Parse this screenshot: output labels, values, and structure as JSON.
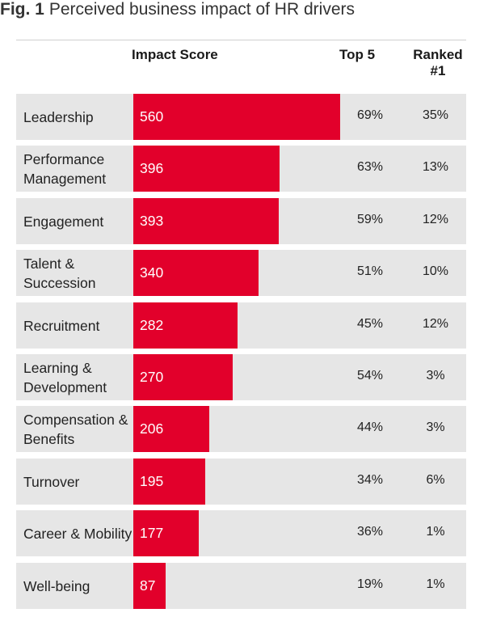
{
  "figure": {
    "number": "Fig. 1",
    "title": "Perceived business impact of HR drivers"
  },
  "headers": {
    "impact": "Impact Score",
    "top5": "Top 5",
    "ranked_line1": "Ranked",
    "ranked_line2": "#1"
  },
  "colors": {
    "bar": "#e2002b",
    "row_bg": "#e6e6e6"
  },
  "chart_data": {
    "type": "bar",
    "title": "Perceived business impact of HR drivers",
    "orientation": "horizontal",
    "xlabel": "Impact Score",
    "xlim": [
      0,
      560
    ],
    "categories": [
      "Leadership",
      "Performance Management",
      "Engagement",
      "Talent & Succession",
      "Recruitment",
      "Learning & Development",
      "Compensation & Benefits",
      "Turnover",
      "Career & Mobility",
      "Well-being"
    ],
    "rows": [
      {
        "label": "Leadership",
        "impact": 560,
        "top5": "69%",
        "ranked1": "35%"
      },
      {
        "label": "Performance Management",
        "impact": 396,
        "top5": "63%",
        "ranked1": "13%"
      },
      {
        "label": "Engagement",
        "impact": 393,
        "top5": "59%",
        "ranked1": "12%"
      },
      {
        "label": "Talent & Succession",
        "impact": 340,
        "top5": "51%",
        "ranked1": "10%"
      },
      {
        "label": "Recruitment",
        "impact": 282,
        "top5": "45%",
        "ranked1": "12%"
      },
      {
        "label": "Learning & Development",
        "impact": 270,
        "top5": "54%",
        "ranked1": "3%"
      },
      {
        "label": "Compensation & Benefits",
        "impact": 206,
        "top5": "44%",
        "ranked1": "3%"
      },
      {
        "label": "Turnover",
        "impact": 195,
        "top5": "34%",
        "ranked1": "6%"
      },
      {
        "label": "Career & Mobility",
        "impact": 177,
        "top5": "36%",
        "ranked1": "1%"
      },
      {
        "label": "Well-being",
        "impact": 87,
        "top5": "19%",
        "ranked1": "1%"
      }
    ]
  }
}
